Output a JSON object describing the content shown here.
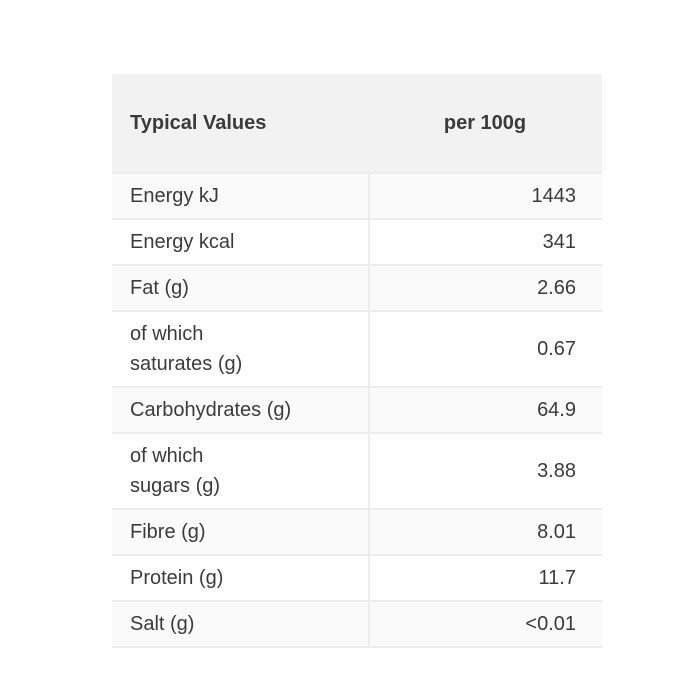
{
  "table": {
    "header": {
      "label": "Typical Values",
      "value": "per 100g"
    },
    "rows": [
      {
        "label_lines": [
          "Energy kJ"
        ],
        "value": "1443"
      },
      {
        "label_lines": [
          "Energy kcal"
        ],
        "value": "341"
      },
      {
        "label_lines": [
          "Fat (g)"
        ],
        "value": "2.66"
      },
      {
        "label_lines": [
          "of which",
          "saturates (g)"
        ],
        "value": "0.67"
      },
      {
        "label_lines": [
          "Carbohydrates (g)"
        ],
        "value": "64.9"
      },
      {
        "label_lines": [
          "of which",
          "sugars (g)"
        ],
        "value": "3.88"
      },
      {
        "label_lines": [
          "Fibre (g)"
        ],
        "value": "8.01"
      },
      {
        "label_lines": [
          "Protein (g)"
        ],
        "value": "11.7"
      },
      {
        "label_lines": [
          "Salt (g)"
        ],
        "value": "<0.01"
      }
    ],
    "colors": {
      "header_bg": "#f2f2f2",
      "stripe_bg": "#fafafa",
      "border": "#ededed",
      "text": "#3b3b3b",
      "page_bg": "#ffffff"
    }
  },
  "chart_data": {
    "type": "table",
    "title": "Typical Values",
    "columns": [
      "Typical Values",
      "per 100g"
    ],
    "rows": [
      [
        "Energy kJ",
        "1443"
      ],
      [
        "Energy kcal",
        "341"
      ],
      [
        "Fat (g)",
        "2.66"
      ],
      [
        "of which saturates (g)",
        "0.67"
      ],
      [
        "Carbohydrates (g)",
        "64.9"
      ],
      [
        "of which sugars (g)",
        "3.88"
      ],
      [
        "Fibre (g)",
        "8.01"
      ],
      [
        "Protein (g)",
        "11.7"
      ],
      [
        "Salt (g)",
        "<0.01"
      ]
    ]
  }
}
